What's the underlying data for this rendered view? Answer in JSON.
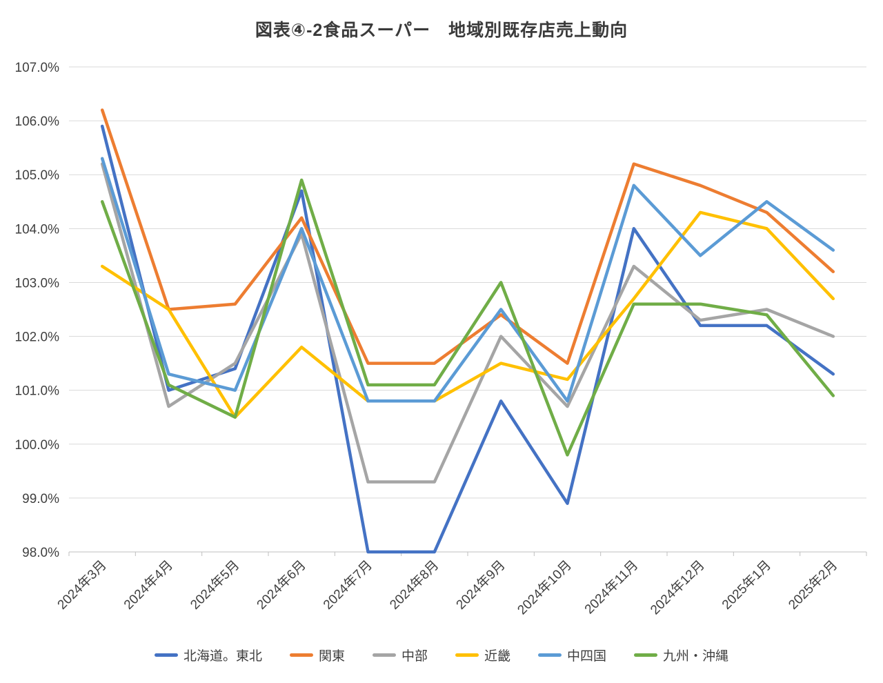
{
  "title": "図表④-2食品スーパー　地域別既存店売上動向",
  "chart_data": {
    "type": "line",
    "title": "図表④-2食品スーパー　地域別既存店売上動向",
    "categories": [
      "2024年3月",
      "2024年4月",
      "2024年5月",
      "2024年6月",
      "2024年7月",
      "2024年8月",
      "2024年9月",
      "2024年10月",
      "2024年11月",
      "2024年12月",
      "2025年1月",
      "2025年2月"
    ],
    "series": [
      {
        "name": "北海道。東北",
        "color": "#4472C4",
        "values": [
          105.9,
          101.0,
          101.4,
          104.7,
          98.0,
          98.0,
          100.8,
          98.9,
          104.0,
          102.2,
          102.2,
          101.3
        ]
      },
      {
        "name": "関東",
        "color": "#ED7D31",
        "values": [
          106.2,
          102.5,
          102.6,
          104.2,
          101.5,
          101.5,
          102.4,
          101.5,
          105.2,
          104.8,
          104.3,
          103.2
        ]
      },
      {
        "name": "中部",
        "color": "#A5A5A5",
        "values": [
          105.2,
          100.7,
          101.5,
          103.9,
          99.3,
          99.3,
          102.0,
          100.7,
          103.3,
          102.3,
          102.5,
          102.0
        ]
      },
      {
        "name": "近畿",
        "color": "#FFC000",
        "values": [
          103.3,
          102.5,
          100.5,
          101.8,
          100.8,
          100.8,
          101.5,
          101.2,
          102.7,
          104.3,
          104.0,
          102.7
        ]
      },
      {
        "name": "中四国",
        "color": "#5B9BD5",
        "values": [
          105.3,
          101.3,
          101.0,
          104.0,
          100.8,
          100.8,
          102.5,
          100.8,
          104.8,
          103.5,
          104.5,
          103.6
        ]
      },
      {
        "name": "九州・沖縄",
        "color": "#70AD47",
        "values": [
          104.5,
          101.1,
          100.5,
          104.9,
          101.1,
          101.1,
          103.0,
          99.8,
          102.6,
          102.6,
          102.4,
          100.9
        ]
      }
    ],
    "y_tick_labels": [
      "98.0%",
      "99.0%",
      "100.0%",
      "101.0%",
      "102.0%",
      "103.0%",
      "104.0%",
      "105.0%",
      "106.0%",
      "107.0%"
    ],
    "ylim": [
      98.0,
      107.0
    ],
    "y_step": 1.0,
    "grid": "horizontal",
    "legend_position": "bottom",
    "xlabel": "",
    "ylabel": ""
  },
  "style": {
    "grid_color": "#D9D9D9",
    "axis_color": "#BFBFBF",
    "axis_text_color": "#3f3f3f",
    "background": "#ffffff"
  }
}
